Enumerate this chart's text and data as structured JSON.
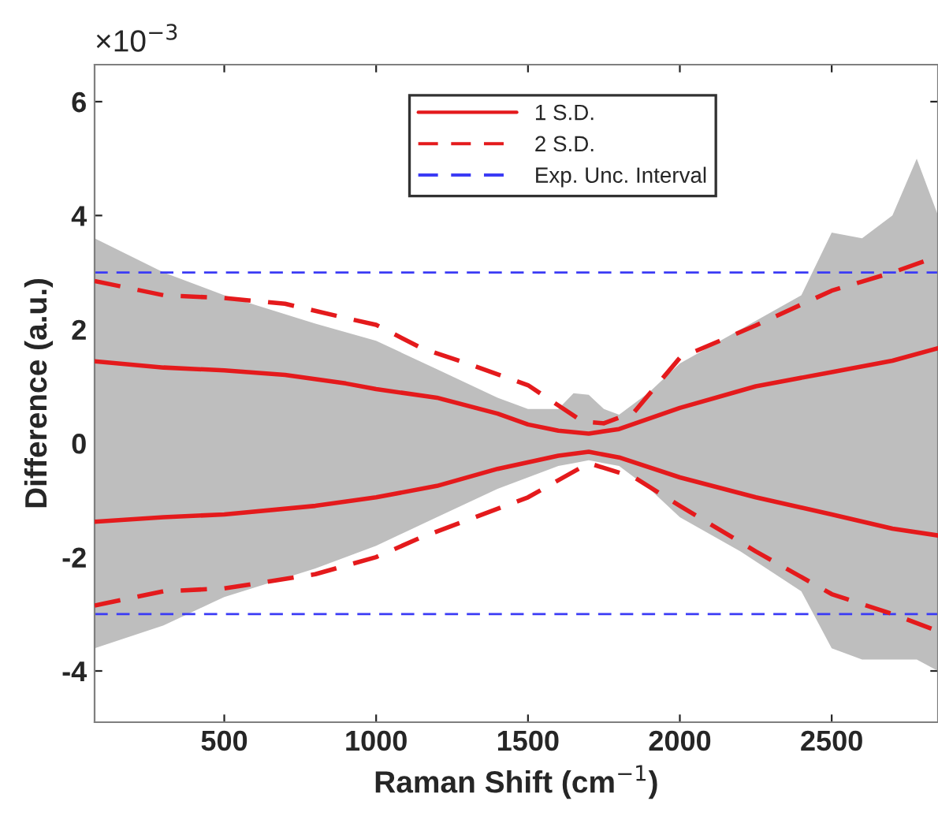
{
  "chart_data": {
    "type": "line",
    "xlabel": "Raman Shift (cm$^{−1}$)",
    "ylabel": "Difference (a.u.)",
    "annotations": [
      "×10$^{−3}$"
    ],
    "xlim": [
      73,
      2850
    ],
    "xticks": [
      500,
      1000,
      1500,
      2000,
      2500
    ],
    "ylim": [
      -4.9,
      6.65
    ],
    "yticks": [
      -4,
      -2,
      0,
      2,
      4,
      6
    ],
    "grid": false,
    "legend": "top",
    "series": [
      {
        "type": "area",
        "color": "#bebebe",
        "x": [
          73,
          300,
          500,
          800,
          1000,
          1200,
          1400,
          1500,
          1600,
          1650,
          1700,
          1750,
          1800,
          1900,
          2000,
          2200,
          2400,
          2500,
          2600,
          2700,
          2780,
          2850
        ],
        "values": [
          null,
          null,
          null,
          null,
          null,
          null,
          null,
          null,
          null,
          null,
          null,
          null,
          null,
          null,
          null,
          null,
          null,
          null,
          null,
          null,
          null,
          null
        ],
        "lower": [
          -3.6,
          -3.2,
          -2.7,
          -2.2,
          -1.8,
          -1.3,
          -0.8,
          -0.6,
          -0.4,
          -0.35,
          -0.3,
          -0.35,
          -0.4,
          -0.8,
          -1.3,
          -1.9,
          -2.6,
          -3.6,
          -3.8,
          -3.8,
          -3.8,
          -4.0
        ],
        "upper": [
          3.6,
          3.0,
          2.6,
          2.1,
          1.8,
          1.3,
          0.8,
          0.6,
          0.6,
          0.88,
          0.85,
          0.6,
          0.5,
          0.9,
          1.4,
          2.0,
          2.6,
          3.7,
          3.6,
          4.0,
          5.0,
          4.0
        ]
      },
      {
        "name": "1 S.D.",
        "color": "#e41a1c",
        "line_style": "solid",
        "x": [
          73,
          300,
          500,
          700,
          900,
          1000,
          1200,
          1400,
          1500,
          1600,
          1700,
          1800,
          2000,
          2250,
          2500,
          2700,
          2850
        ],
        "values": [
          1.44,
          1.33,
          1.28,
          1.2,
          1.05,
          0.95,
          0.8,
          0.52,
          0.33,
          0.22,
          0.17,
          0.25,
          0.62,
          1.0,
          1.25,
          1.45,
          1.67
        ]
      },
      {
        "color": "#e41a1c",
        "line_style": "solid",
        "x": [
          73,
          300,
          500,
          800,
          1000,
          1200,
          1400,
          1600,
          1700,
          1800,
          2000,
          2250,
          2500,
          2700,
          2850
        ],
        "values": [
          -1.38,
          -1.3,
          -1.25,
          -1.1,
          -0.95,
          -0.75,
          -0.45,
          -0.22,
          -0.15,
          -0.25,
          -0.6,
          -0.95,
          -1.25,
          -1.5,
          -1.62
        ]
      },
      {
        "name": "2 S.D.",
        "color": "#e41a1c",
        "line_style": "dashed",
        "x": [
          73,
          300,
          500,
          700,
          900,
          1000,
          1150,
          1300,
          1500,
          1680,
          1750,
          1850,
          2000,
          2250,
          2500,
          2700,
          2850
        ],
        "values": [
          2.85,
          2.6,
          2.55,
          2.45,
          2.2,
          2.08,
          1.67,
          1.4,
          1.02,
          0.38,
          0.35,
          0.55,
          1.5,
          2.07,
          2.68,
          3.0,
          3.28
        ]
      },
      {
        "color": "#e41a1c",
        "line_style": "dashed",
        "x": [
          73,
          300,
          500,
          800,
          1000,
          1150,
          1300,
          1500,
          1700,
          1850,
          2000,
          2250,
          2500,
          2700,
          2850
        ],
        "values": [
          -2.85,
          -2.6,
          -2.55,
          -2.3,
          -2.0,
          -1.65,
          -1.35,
          -0.95,
          -0.35,
          -0.6,
          -1.1,
          -1.9,
          -2.65,
          -3.0,
          -3.3
        ]
      }
    ],
    "ref_lines": [
      {
        "axis": "y",
        "value": 3,
        "label": "Exp. Unc. Interval",
        "color": "#3b3bf5",
        "line_style": "dashed"
      },
      {
        "axis": "y",
        "value": -3,
        "color": "#3b3bf5",
        "line_style": "dashed"
      }
    ]
  }
}
